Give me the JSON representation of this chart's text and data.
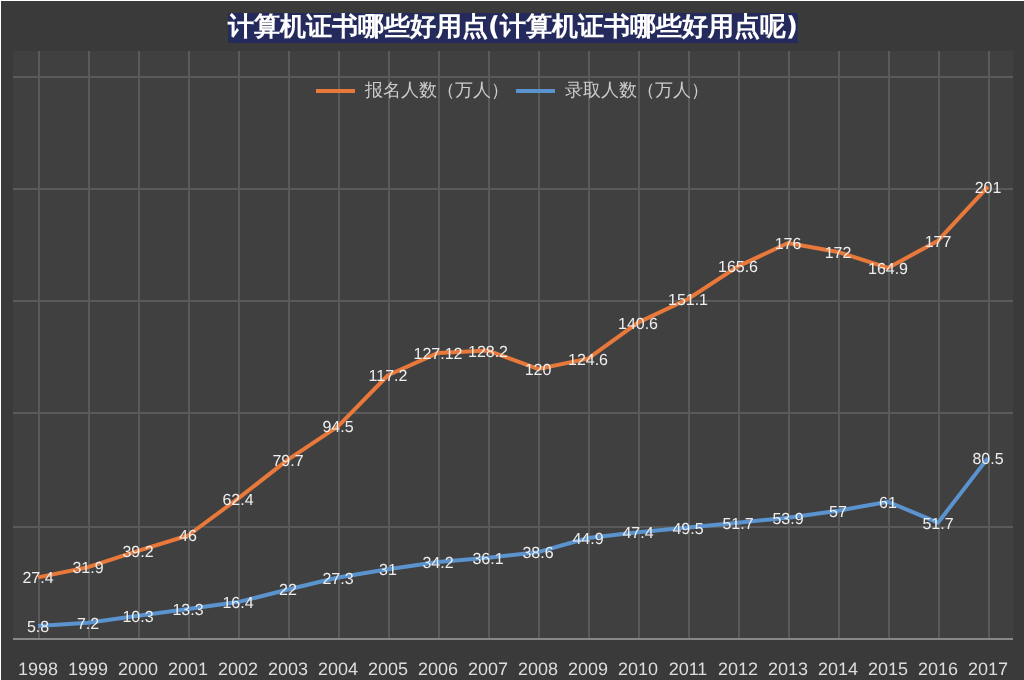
{
  "chart_data": {
    "type": "line",
    "title": "计算机证书哪些好用点(计算机证书哪些好用点呢)",
    "categories": [
      "1998",
      "1999",
      "2000",
      "2001",
      "2002",
      "2003",
      "2004",
      "2005",
      "2006",
      "2007",
      "2008",
      "2009",
      "2010",
      "2011",
      "2012",
      "2013",
      "2014",
      "2015",
      "2016",
      "2017"
    ],
    "series": [
      {
        "name": "报名人数（万人）",
        "color": "#e8793a",
        "values": [
          27.4,
          31.9,
          39.2,
          46,
          62.4,
          79.7,
          94.5,
          117.2,
          127.12,
          128.2,
          120,
          124.6,
          140.6,
          151.1,
          165.6,
          176,
          172,
          164.9,
          177,
          201
        ]
      },
      {
        "name": "录取人数（万人）",
        "color": "#5b93cf",
        "values": [
          5.8,
          7.2,
          10.3,
          13.3,
          16.4,
          22,
          27.3,
          31,
          34.2,
          36.1,
          38.6,
          44.9,
          47.4,
          49.5,
          51.7,
          53.9,
          57,
          61,
          51.7,
          80.5
        ]
      }
    ],
    "data_labels": true,
    "grid": true,
    "legend": "top",
    "marker": "none",
    "line_style": "solid",
    "tick_labels": "x"
  }
}
